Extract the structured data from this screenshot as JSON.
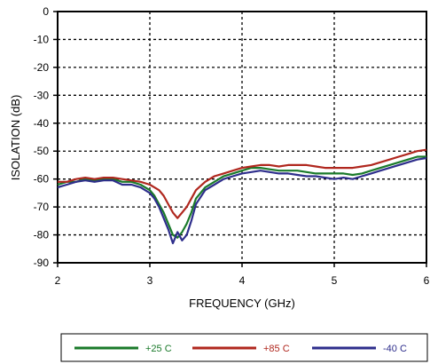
{
  "chart_data": {
    "type": "line",
    "title": "",
    "xlabel": "FREQUENCY (GHz)",
    "ylabel": "ISOLATION (dB)",
    "xlim": [
      2,
      6
    ],
    "ylim": [
      -90,
      0
    ],
    "xticks": [
      "2",
      "3",
      "4",
      "5",
      "6"
    ],
    "yticks": [
      "0",
      "-10",
      "-20",
      "-30",
      "-40",
      "-50",
      "-60",
      "-70",
      "-80",
      "-90"
    ],
    "grid": true,
    "legend_position": "bottom",
    "series": [
      {
        "name": "+25 C",
        "color": "#1a7a2a",
        "x": [
          2.0,
          2.1,
          2.2,
          2.3,
          2.4,
          2.5,
          2.6,
          2.7,
          2.8,
          2.9,
          3.0,
          3.05,
          3.1,
          3.15,
          3.2,
          3.25,
          3.3,
          3.35,
          3.4,
          3.45,
          3.5,
          3.6,
          3.7,
          3.8,
          3.9,
          4.0,
          4.1,
          4.2,
          4.3,
          4.4,
          4.5,
          4.6,
          4.7,
          4.8,
          4.9,
          5.0,
          5.1,
          5.2,
          5.3,
          5.4,
          5.5,
          5.6,
          5.7,
          5.8,
          5.9,
          6.0
        ],
        "y": [
          -62,
          -61,
          -61,
          -60,
          -60.5,
          -60,
          -60,
          -61,
          -61,
          -62,
          -64,
          -66,
          -69,
          -72,
          -76,
          -80,
          -81,
          -79,
          -76,
          -72,
          -67,
          -63,
          -61,
          -59,
          -58,
          -57,
          -56,
          -56,
          -56.5,
          -57,
          -57,
          -57,
          -57.5,
          -58,
          -58,
          -58,
          -58,
          -58.5,
          -58,
          -57,
          -56,
          -55,
          -54,
          -53,
          -52,
          -52
        ]
      },
      {
        "name": "+85 C",
        "color": "#b0271e",
        "x": [
          2.0,
          2.1,
          2.2,
          2.3,
          2.4,
          2.5,
          2.6,
          2.7,
          2.8,
          2.9,
          3.0,
          3.05,
          3.1,
          3.15,
          3.2,
          3.25,
          3.3,
          3.35,
          3.4,
          3.45,
          3.5,
          3.6,
          3.7,
          3.8,
          3.9,
          4.0,
          4.1,
          4.2,
          4.3,
          4.4,
          4.5,
          4.6,
          4.7,
          4.8,
          4.9,
          5.0,
          5.1,
          5.2,
          5.3,
          5.4,
          5.5,
          5.6,
          5.7,
          5.8,
          5.9,
          6.0
        ],
        "y": [
          -61,
          -61,
          -60,
          -59.5,
          -60,
          -59.5,
          -59.5,
          -60,
          -60.5,
          -61,
          -62,
          -63,
          -64,
          -66,
          -69,
          -72,
          -74,
          -72,
          -70,
          -67,
          -64,
          -61,
          -59,
          -58,
          -57,
          -56,
          -55.5,
          -55,
          -55,
          -55.5,
          -55,
          -55,
          -55,
          -55.5,
          -56,
          -56,
          -56,
          -56,
          -55.5,
          -55,
          -54,
          -53,
          -52,
          -51,
          -50,
          -49.5
        ]
      },
      {
        "name": "-40 C",
        "color": "#2e2e8c",
        "x": [
          2.0,
          2.1,
          2.2,
          2.3,
          2.4,
          2.5,
          2.6,
          2.7,
          2.8,
          2.9,
          3.0,
          3.05,
          3.1,
          3.15,
          3.2,
          3.25,
          3.3,
          3.35,
          3.4,
          3.45,
          3.5,
          3.6,
          3.7,
          3.8,
          3.9,
          4.0,
          4.1,
          4.2,
          4.3,
          4.4,
          4.5,
          4.6,
          4.7,
          4.8,
          4.9,
          5.0,
          5.1,
          5.2,
          5.3,
          5.4,
          5.5,
          5.6,
          5.7,
          5.8,
          5.9,
          6.0
        ],
        "y": [
          -63,
          -62,
          -61,
          -60.5,
          -61,
          -60.5,
          -60.5,
          -62,
          -62,
          -63,
          -65,
          -67,
          -70,
          -74,
          -78,
          -83,
          -79,
          -82,
          -80,
          -75,
          -69,
          -64,
          -62,
          -60,
          -59,
          -58,
          -57.5,
          -57,
          -57.5,
          -58,
          -58,
          -58.5,
          -59,
          -59,
          -59.5,
          -60,
          -59.5,
          -60,
          -59,
          -58,
          -57,
          -56,
          -55,
          -54,
          -53,
          -52.5
        ]
      }
    ]
  }
}
